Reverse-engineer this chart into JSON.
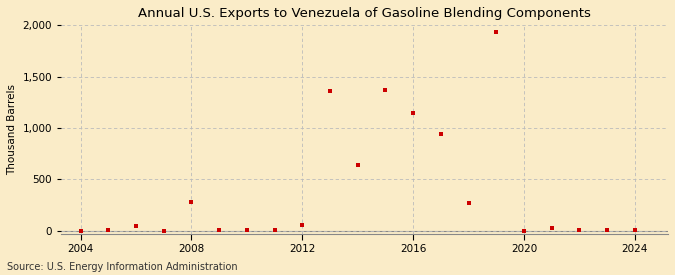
{
  "title": "Annual U.S. Exports to Venezuela of Gasoline Blending Components",
  "ylabel": "Thousand Barrels",
  "source": "Source: U.S. Energy Information Administration",
  "years": [
    2004,
    2005,
    2006,
    2007,
    2008,
    2009,
    2010,
    2011,
    2012,
    2013,
    2014,
    2015,
    2016,
    2017,
    2018,
    2019,
    2020,
    2021,
    2022,
    2023,
    2024
  ],
  "values": [
    2,
    7,
    50,
    2,
    285,
    5,
    10,
    10,
    55,
    1365,
    645,
    1370,
    1150,
    940,
    275,
    1930,
    2,
    30,
    5,
    8,
    5
  ],
  "marker_color": "#cc0000",
  "background_color": "#faecc8",
  "grid_color": "#bbbbbb",
  "xlim": [
    2003.3,
    2025.2
  ],
  "ylim": [
    -30,
    2000
  ],
  "yticks": [
    0,
    500,
    1000,
    1500,
    2000
  ],
  "ytick_labels": [
    "0",
    "500",
    "1,000",
    "1,500",
    "2,000"
  ],
  "xticks": [
    2004,
    2008,
    2012,
    2016,
    2020,
    2024
  ],
  "title_fontsize": 9.5,
  "axis_fontsize": 7.5,
  "source_fontsize": 7
}
